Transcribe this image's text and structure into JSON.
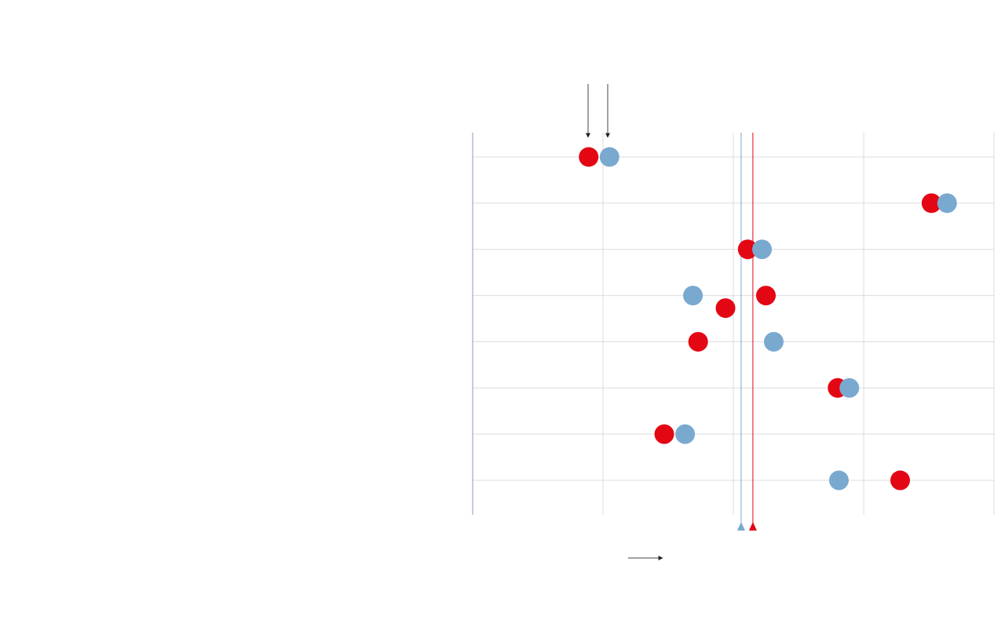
{
  "chart_data": {
    "type": "dot",
    "categories": [
      null,
      null,
      null,
      null,
      null,
      null,
      null,
      null
    ],
    "series": [
      {
        "color": "#e30613",
        "values": [
          0.89,
          3.52,
          2.11,
          2.25,
          1.73,
          2.8,
          1.47,
          3.28
        ]
      },
      {
        "color": "#7aa9d0",
        "values": [
          1.05,
          3.64,
          2.22,
          1.69,
          2.31,
          2.89,
          1.63,
          2.81
        ]
      },
      {
        "color": "#e30613",
        "values": [
          null,
          null,
          null,
          1.94,
          null,
          null,
          null,
          null
        ]
      }
    ],
    "reference_lines": [
      {
        "color": "#7aa9d0",
        "value": 2.06
      },
      {
        "color": "#e30613",
        "value": 2.15
      }
    ],
    "xlim": [
      0,
      4
    ],
    "xticks": [
      0,
      1,
      2,
      3,
      4
    ],
    "grid": true
  }
}
